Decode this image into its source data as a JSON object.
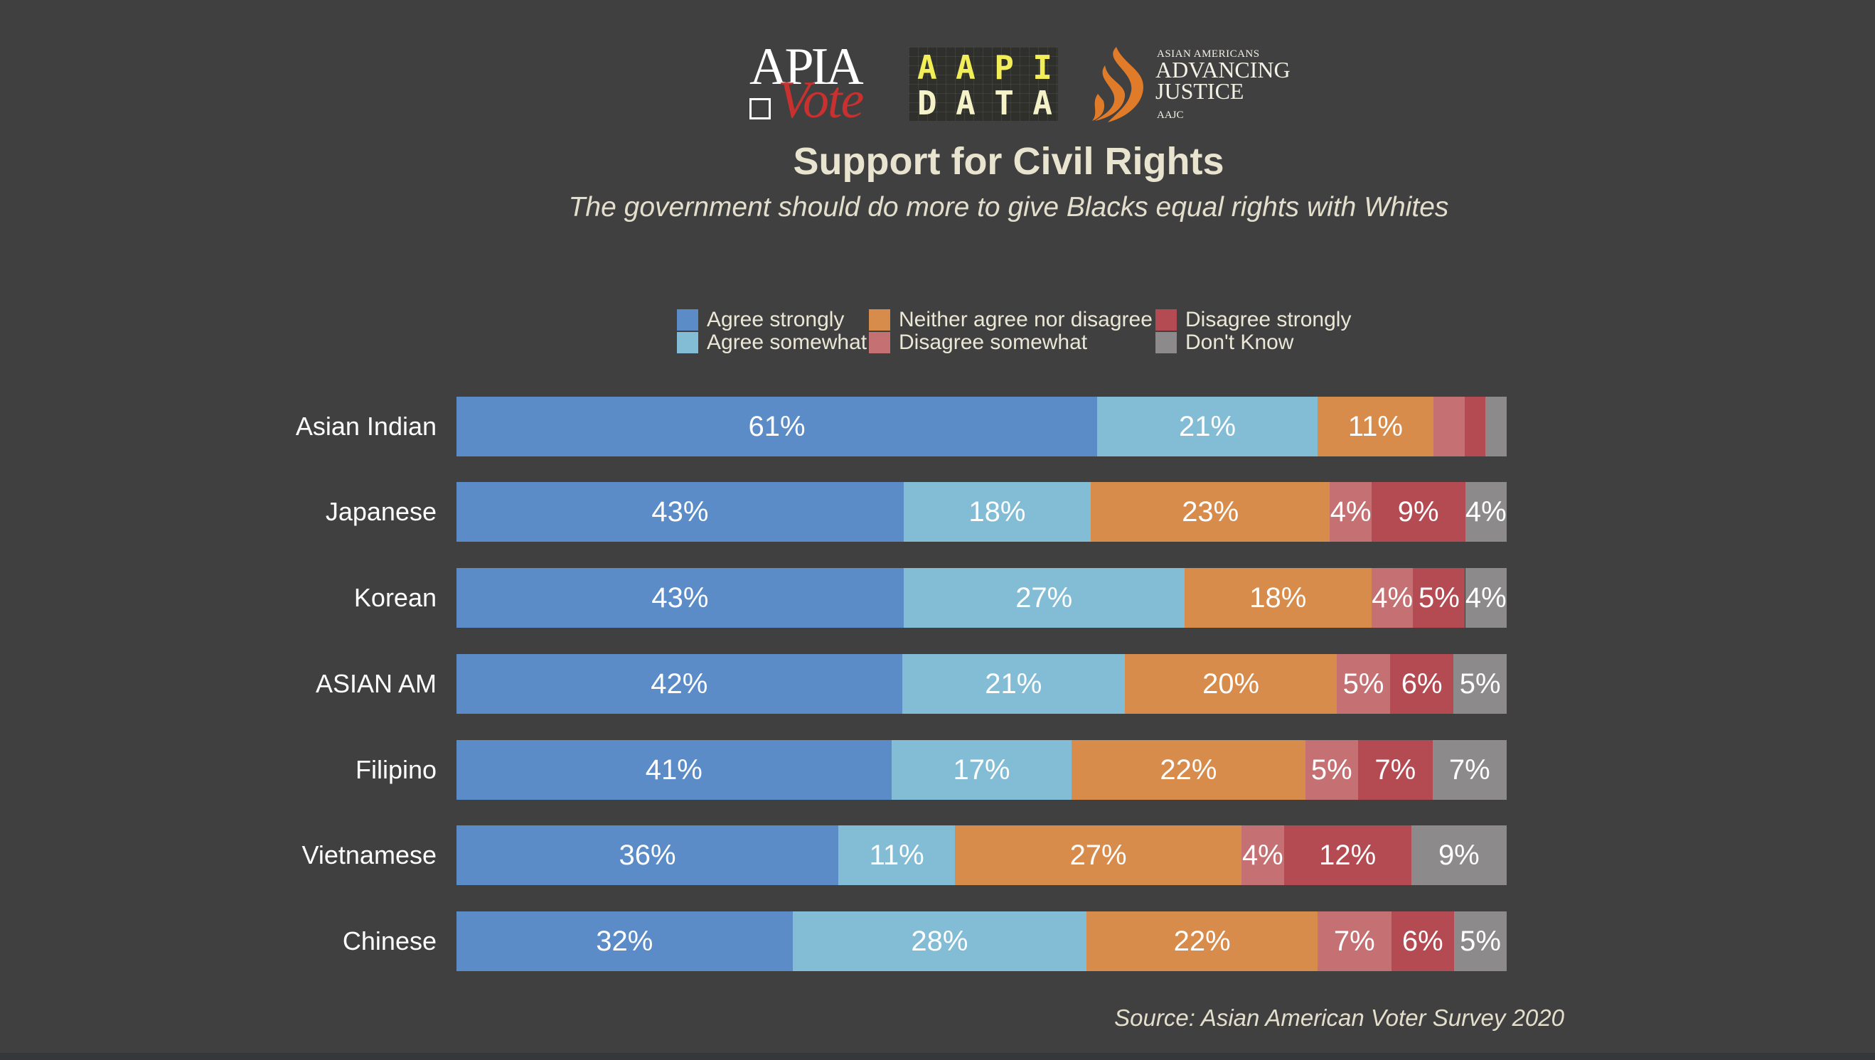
{
  "logos": {
    "apia_vote": {
      "top": "APIA",
      "bottom": "Vote"
    },
    "aapi_data": {
      "row1": [
        "A",
        "A",
        "P",
        "I"
      ],
      "row2": [
        "D",
        "A",
        "T",
        "A"
      ]
    },
    "aajc": {
      "line1": "ASIAN AMERICANS",
      "line2": "ADVANCING",
      "line3": "JUSTICE",
      "line4": "AAJC"
    }
  },
  "source": "Source: Asian American Voter Survey 2020",
  "chart_data": {
    "type": "bar",
    "orientation": "horizontal",
    "stacked": true,
    "normalized": true,
    "title": "Support for Civil Rights",
    "subtitle": "The government should do more to give Blacks equal rights with Whites",
    "xlabel": "",
    "ylabel": "",
    "xlim": [
      0,
      100
    ],
    "grid": false,
    "legend_position": "top-center",
    "categories": [
      "Asian Indian",
      "Japanese",
      "Korean",
      "ASIAN AM",
      "Filipino",
      "Vietnamese",
      "Chinese"
    ],
    "series": [
      {
        "name": "Agree strongly",
        "color": "#5b8cc8",
        "values": [
          61,
          43,
          43,
          42,
          41,
          36,
          32
        ],
        "labels": [
          "61%",
          "43%",
          "43%",
          "42%",
          "41%",
          "36%",
          "32%"
        ]
      },
      {
        "name": "Agree somewhat",
        "color": "#83bcd5",
        "values": [
          21,
          18,
          27,
          21,
          17,
          11,
          28
        ],
        "labels": [
          "21%",
          "18%",
          "27%",
          "21%",
          "17%",
          "11%",
          "28%"
        ]
      },
      {
        "name": "Neither agree nor disagree",
        "color": "#d88c4c",
        "values": [
          11,
          23,
          18,
          20,
          22,
          27,
          22
        ],
        "labels": [
          "11%",
          "23%",
          "18%",
          "20%",
          "22%",
          "27%",
          "22%"
        ]
      },
      {
        "name": "Disagree somewhat",
        "color": "#c57073",
        "values": [
          3,
          4,
          4,
          5,
          5,
          4,
          7
        ],
        "labels": [
          "",
          "4%",
          "4%",
          "5%",
          "5%",
          "4%",
          "7%"
        ]
      },
      {
        "name": "Disagree strongly",
        "color": "#b44b53",
        "values": [
          2,
          9,
          5,
          6,
          7,
          12,
          6
        ],
        "labels": [
          "",
          "9%",
          "5%",
          "6%",
          "7%",
          "12%",
          "6%"
        ]
      },
      {
        "name": "Don't Know",
        "color": "#8c8a8a",
        "values": [
          2,
          4,
          4,
          5,
          7,
          9,
          5
        ],
        "labels": [
          "",
          "4%",
          "4%",
          "5%",
          "7%",
          "9%",
          "5%"
        ]
      }
    ]
  }
}
